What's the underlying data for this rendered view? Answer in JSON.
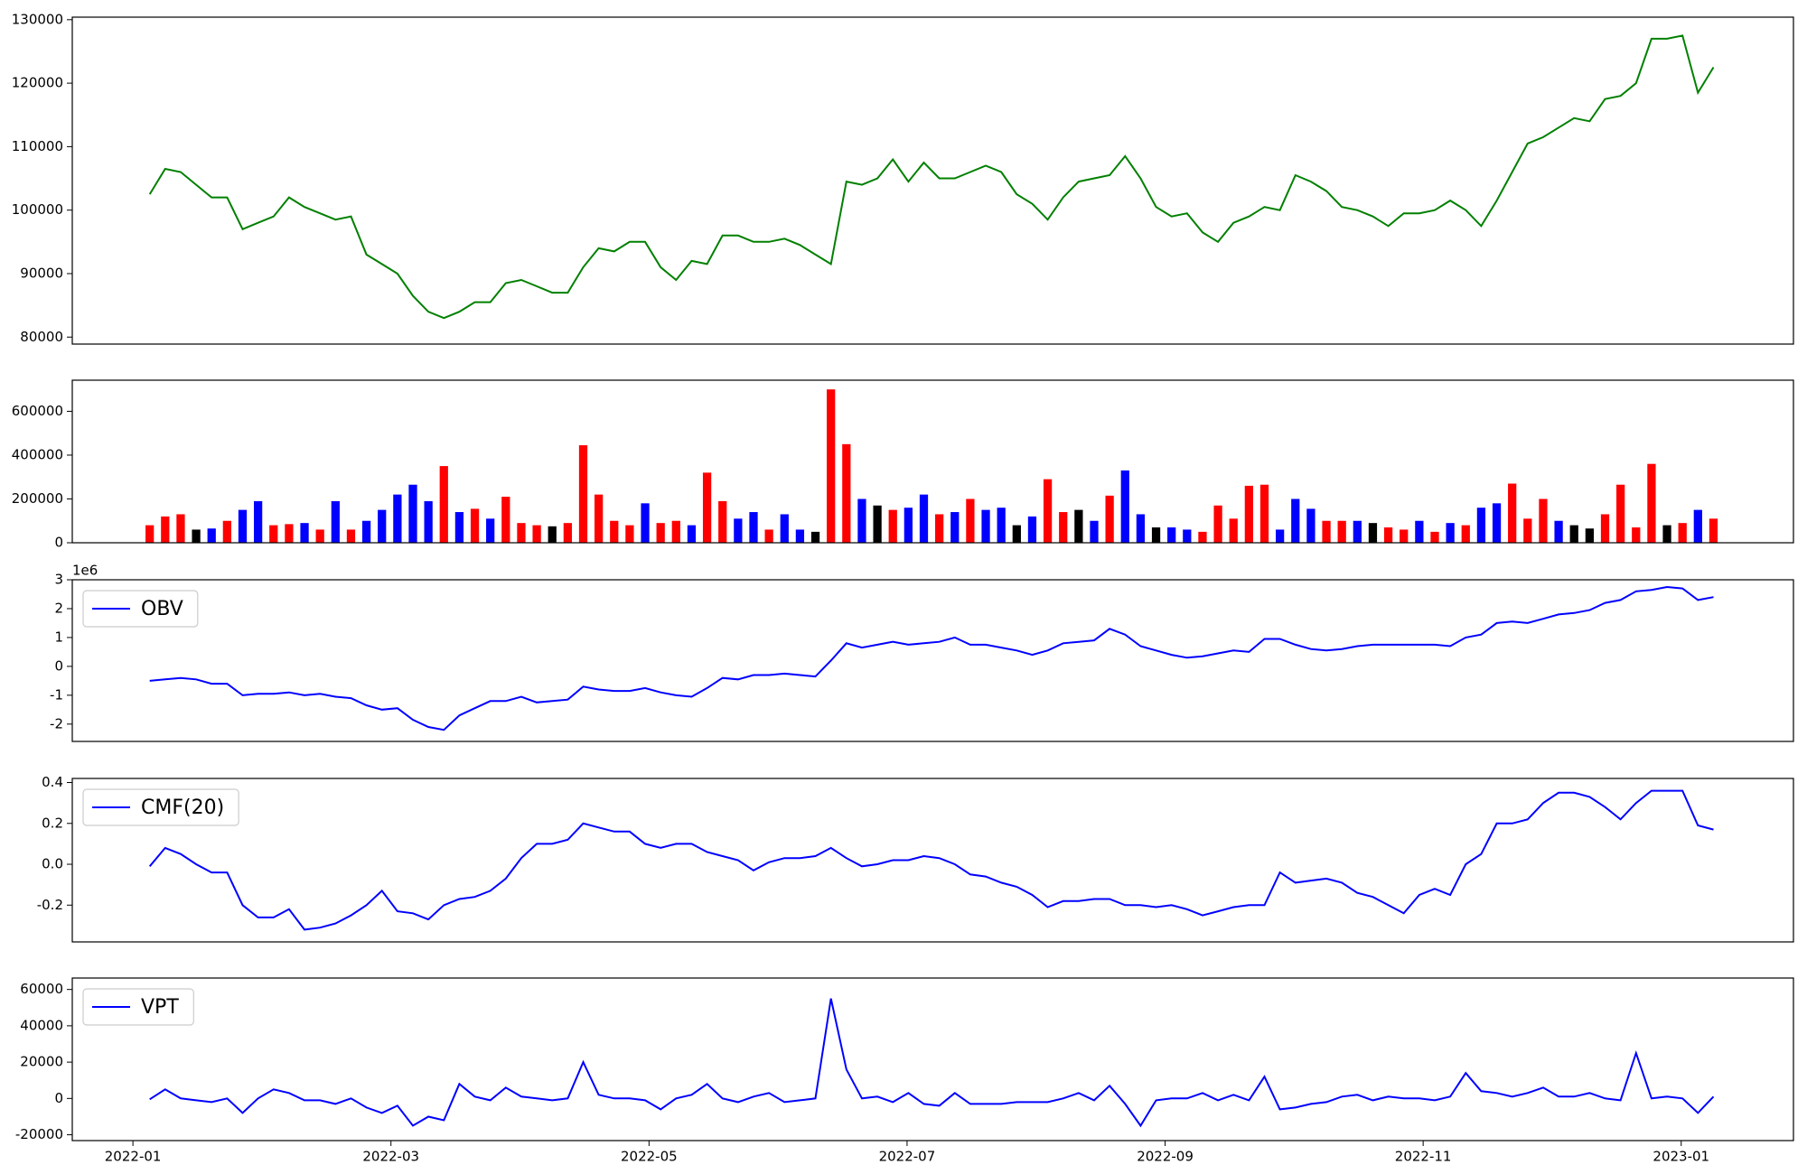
{
  "chart_data": {
    "type": "multi",
    "x": [
      0.13,
      0.25,
      0.37,
      0.49,
      0.61,
      0.73,
      0.85,
      0.97,
      1.09,
      1.21,
      1.33,
      1.45,
      1.57,
      1.69,
      1.81,
      1.93,
      2.05,
      2.17,
      2.29,
      2.41,
      2.53,
      2.65,
      2.77,
      2.89,
      3.01,
      3.13,
      3.25,
      3.37,
      3.49,
      3.61,
      3.73,
      3.85,
      3.97,
      4.09,
      4.21,
      4.33,
      4.45,
      4.57,
      4.69,
      4.81,
      4.93,
      5.05,
      5.17,
      5.29,
      5.41,
      5.53,
      5.65,
      5.77,
      5.89,
      6.01,
      6.13,
      6.25,
      6.37,
      6.49,
      6.61,
      6.73,
      6.85,
      6.97,
      7.09,
      7.21,
      7.33,
      7.45,
      7.57,
      7.69,
      7.81,
      7.93,
      8.05,
      8.17,
      8.29,
      8.41,
      8.53,
      8.65,
      8.77,
      8.89,
      9.01,
      9.13,
      9.25,
      9.37,
      9.49,
      9.61,
      9.73,
      9.85,
      9.97,
      10.09,
      10.21,
      10.33,
      10.45,
      10.57,
      10.69,
      10.81,
      10.93,
      11.05,
      11.17,
      11.29,
      11.41,
      11.53,
      11.65,
      11.77,
      11.89,
      12.01,
      12.13,
      12.25
    ],
    "xlim": [
      -0.47,
      12.87
    ],
    "xticks": [
      {
        "value": 0,
        "label": "2022-01"
      },
      {
        "value": 2,
        "label": "2022-03"
      },
      {
        "value": 4,
        "label": "2022-05"
      },
      {
        "value": 6,
        "label": "2022-07"
      },
      {
        "value": 8,
        "label": "2022-09"
      },
      {
        "value": 10,
        "label": "2022-11"
      },
      {
        "value": 12,
        "label": "2023-01"
      }
    ],
    "panels": [
      {
        "type": "line",
        "ylim": [
          78900,
          130400
        ],
        "yticks": [
          80000,
          90000,
          100000,
          110000,
          120000,
          130000
        ],
        "series": [
          {
            "color": "#008000",
            "values": [
              102500,
              106500,
              106000,
              104000,
              102000,
              102000,
              97000,
              98000,
              99000,
              102000,
              100500,
              99500,
              98500,
              99000,
              93000,
              91500,
              90000,
              86500,
              84000,
              83000,
              84000,
              85500,
              85500,
              88500,
              89000,
              88000,
              87000,
              87000,
              91000,
              94000,
              93500,
              95000,
              95000,
              91000,
              89000,
              92000,
              91500,
              96000,
              96000,
              95000,
              95000,
              95500,
              94500,
              93000,
              91500,
              104500,
              104000,
              105000,
              108000,
              104500,
              107500,
              105000,
              105000,
              106000,
              107000,
              106000,
              102500,
              101000,
              98500,
              102000,
              104500,
              105000,
              105500,
              108500,
              105000,
              100500,
              99000,
              99500,
              96500,
              95000,
              98000,
              99000,
              100500,
              100000,
              105500,
              104500,
              103000,
              100500,
              100000,
              99000,
              97500,
              99500,
              99500,
              100000,
              101500,
              100000,
              97500,
              101500,
              106000,
              110500,
              111500,
              113000,
              114500,
              114000,
              117500,
              118000,
              120000,
              127000,
              127000,
              127500,
              118500,
              122500
            ]
          }
        ]
      },
      {
        "type": "bar",
        "ylim": [
          0,
          742000
        ],
        "yticks": [
          0,
          200000,
          400000,
          600000
        ],
        "values": [
          80000,
          120000,
          130000,
          60000,
          65000,
          100000,
          150000,
          190000,
          80000,
          85000,
          90000,
          60000,
          190000,
          60000,
          100000,
          150000,
          220000,
          265000,
          190000,
          350000,
          140000,
          155000,
          110000,
          210000,
          90000,
          80000,
          75000,
          90000,
          445000,
          220000,
          100000,
          80000,
          180000,
          90000,
          100000,
          80000,
          320000,
          190000,
          110000,
          140000,
          60000,
          130000,
          60000,
          50000,
          700000,
          450000,
          200000,
          170000,
          150000,
          160000,
          220000,
          130000,
          140000,
          200000,
          150000,
          160000,
          80000,
          120000,
          290000,
          140000,
          150000,
          100000,
          215000,
          330000,
          130000,
          70000,
          70000,
          60000,
          50000,
          170000,
          110000,
          260000,
          265000,
          60000,
          200000,
          155000,
          100000,
          100000,
          100000,
          90000,
          70000,
          60000,
          100000,
          50000,
          90000,
          80000,
          160000,
          180000,
          270000,
          110000,
          200000,
          100000,
          80000,
          65000,
          130000,
          265000,
          70000,
          360000,
          80000,
          90000,
          150000,
          110000
        ],
        "colors": [
          "red",
          "red",
          "red",
          "black",
          "blue",
          "red",
          "blue",
          "blue",
          "red",
          "red",
          "blue",
          "red",
          "blue",
          "red",
          "blue",
          "blue",
          "blue",
          "blue",
          "blue",
          "red",
          "blue",
          "red",
          "blue",
          "red",
          "red",
          "red",
          "black",
          "red",
          "red",
          "red",
          "red",
          "red",
          "blue",
          "red",
          "red",
          "blue",
          "red",
          "red",
          "blue",
          "blue",
          "red",
          "blue",
          "blue",
          "black",
          "red",
          "red",
          "blue",
          "black",
          "red",
          "blue",
          "blue",
          "red",
          "blue",
          "red",
          "blue",
          "blue",
          "black",
          "blue",
          "red",
          "red",
          "black",
          "blue",
          "red",
          "blue",
          "blue",
          "black",
          "blue",
          "blue",
          "red",
          "red",
          "red",
          "red",
          "red",
          "blue",
          "blue",
          "blue",
          "red",
          "red",
          "blue",
          "black",
          "red",
          "red",
          "blue",
          "red",
          "blue",
          "red",
          "blue",
          "blue",
          "red",
          "red",
          "red",
          "blue",
          "black",
          "black",
          "red",
          "red",
          "red",
          "red",
          "black",
          "red",
          "blue",
          "red"
        ]
      },
      {
        "type": "line",
        "ylim": [
          -2.6,
          3.0
        ],
        "yticks": [
          -2,
          -1,
          0,
          1,
          2,
          3
        ],
        "offset_label": "1e6",
        "legend": "upper left",
        "series": [
          {
            "name": "OBV",
            "color": "#0000ff",
            "values": [
              -0.5,
              -0.45,
              -0.4,
              -0.45,
              -0.6,
              -0.6,
              -1.0,
              -0.95,
              -0.95,
              -0.9,
              -1.0,
              -0.95,
              -1.05,
              -1.1,
              -1.35,
              -1.5,
              -1.45,
              -1.85,
              -2.1,
              -2.2,
              -1.7,
              -1.45,
              -1.2,
              -1.2,
              -1.05,
              -1.25,
              -1.2,
              -1.15,
              -0.7,
              -0.8,
              -0.85,
              -0.85,
              -0.75,
              -0.9,
              -1.0,
              -1.05,
              -0.75,
              -0.4,
              -0.45,
              -0.3,
              -0.3,
              -0.25,
              -0.3,
              -0.35,
              0.2,
              0.8,
              0.65,
              0.75,
              0.85,
              0.75,
              0.8,
              0.85,
              1.0,
              0.75,
              0.75,
              0.65,
              0.55,
              0.4,
              0.55,
              0.8,
              0.85,
              0.9,
              1.3,
              1.1,
              0.7,
              0.55,
              0.4,
              0.3,
              0.35,
              0.45,
              0.55,
              0.5,
              0.95,
              0.95,
              0.75,
              0.6,
              0.55,
              0.6,
              0.7,
              0.75,
              0.75,
              0.75,
              0.75,
              0.75,
              0.7,
              1.0,
              1.1,
              1.5,
              1.55,
              1.5,
              1.65,
              1.8,
              1.85,
              1.95,
              2.2,
              2.3,
              2.6,
              2.65,
              2.75,
              2.7,
              2.3,
              2.4
            ]
          }
        ]
      },
      {
        "type": "line",
        "ylim": [
          -0.38,
          0.42
        ],
        "yticks": [
          -0.2,
          {
            "value": 0,
            "label": "0.0"
          },
          0.2,
          0.4
        ],
        "legend": "upper left",
        "series": [
          {
            "name": "CMF(20)",
            "color": "#0000ff",
            "values": [
              -0.01,
              0.08,
              0.05,
              0.0,
              -0.04,
              -0.04,
              -0.2,
              -0.26,
              -0.26,
              -0.22,
              -0.32,
              -0.31,
              -0.29,
              -0.25,
              -0.2,
              -0.13,
              -0.23,
              -0.24,
              -0.27,
              -0.2,
              -0.17,
              -0.16,
              -0.13,
              -0.07,
              0.03,
              0.1,
              0.1,
              0.12,
              0.2,
              0.18,
              0.16,
              0.16,
              0.1,
              0.08,
              0.1,
              0.1,
              0.06,
              0.04,
              0.02,
              -0.03,
              0.01,
              0.03,
              0.03,
              0.04,
              0.08,
              0.03,
              -0.01,
              0.0,
              0.02,
              0.02,
              0.04,
              0.03,
              0.0,
              -0.05,
              -0.06,
              -0.09,
              -0.11,
              -0.15,
              -0.21,
              -0.18,
              -0.18,
              -0.17,
              -0.17,
              -0.2,
              -0.2,
              -0.21,
              -0.2,
              -0.22,
              -0.25,
              -0.23,
              -0.21,
              -0.2,
              -0.2,
              -0.04,
              -0.09,
              -0.08,
              -0.07,
              -0.09,
              -0.14,
              -0.16,
              -0.2,
              -0.24,
              -0.15,
              -0.12,
              -0.15,
              0.0,
              0.05,
              0.2,
              0.2,
              0.22,
              0.3,
              0.35,
              0.35,
              0.33,
              0.28,
              0.22,
              0.3,
              0.36,
              0.36,
              0.36,
              0.19,
              0.17
            ]
          }
        ]
      },
      {
        "type": "line",
        "ylim": [
          -23200,
          66300
        ],
        "yticks": [
          -20000,
          0,
          20000,
          40000,
          60000
        ],
        "legend": "upper left",
        "series": [
          {
            "name": "VPT",
            "color": "#0000ff",
            "values": [
              -500,
              5000,
              0,
              -1000,
              -2000,
              0,
              -8000,
              0,
              5000,
              3000,
              -1000,
              -1000,
              -3000,
              0,
              -5000,
              -8000,
              -4000,
              -15000,
              -10000,
              -12000,
              8000,
              1000,
              -1000,
              6000,
              1000,
              0,
              -1000,
              0,
              20000,
              2000,
              0,
              0,
              -1000,
              -6000,
              0,
              2000,
              8000,
              0,
              -2000,
              1000,
              3000,
              -2000,
              -1000,
              0,
              55000,
              16000,
              0,
              1000,
              -2000,
              3000,
              -3000,
              -4000,
              3000,
              -3000,
              -3000,
              -3000,
              -2000,
              -2000,
              -2000,
              0,
              3000,
              -1000,
              7000,
              -3000,
              -15000,
              -1000,
              0,
              0,
              3000,
              -1000,
              2000,
              -1000,
              12000,
              -6000,
              -5000,
              -3000,
              -2000,
              1000,
              2000,
              -1000,
              1000,
              0,
              0,
              -1000,
              1000,
              14000,
              4000,
              3000,
              1000,
              3000,
              6000,
              1000,
              1000,
              3000,
              0,
              -1000,
              25000,
              0,
              1000,
              0,
              -8000,
              1000
            ]
          }
        ]
      }
    ]
  }
}
